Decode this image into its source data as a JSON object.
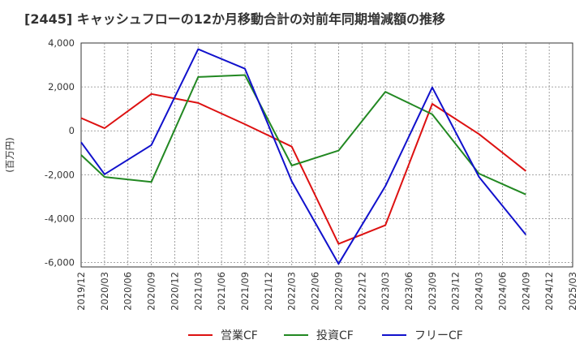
{
  "chart_data": {
    "type": "line",
    "title": "[2445]  キャッシュフローの12か月移動合計の対前年同期増減額の推移",
    "ylabel": "(百万円)",
    "xlabel": "",
    "ylim": [
      -6200,
      4000
    ],
    "yticks": [
      4000,
      2000,
      0,
      -2000,
      -4000,
      -6000
    ],
    "ytick_labels": [
      "4,000",
      "2,000",
      "0",
      "-2,000",
      "-4,000",
      "-6,000"
    ],
    "categories": [
      "2019/12",
      "2020/03",
      "2020/06",
      "2020/09",
      "2020/12",
      "2021/03",
      "2021/06",
      "2021/09",
      "2021/12",
      "2022/03",
      "2022/06",
      "2022/09",
      "2022/12",
      "2023/03",
      "2023/06",
      "2023/09",
      "2023/12",
      "2024/03",
      "2024/06",
      "2024/09",
      "2024/12",
      "2025/03"
    ],
    "grid": true,
    "legend_position": "bottom",
    "series": [
      {
        "name": "営業CF",
        "color": "#dd1111",
        "values": [
          580,
          120,
          null,
          1680,
          null,
          1270,
          null,
          300,
          null,
          -720,
          null,
          -5150,
          null,
          -4300,
          null,
          1230,
          null,
          -150,
          null,
          -1830,
          null,
          null
        ]
      },
      {
        "name": "投資CF",
        "color": "#228822",
        "values": [
          -1100,
          -2100,
          null,
          -2330,
          null,
          2450,
          null,
          2540,
          null,
          -1580,
          null,
          -900,
          null,
          1780,
          null,
          750,
          null,
          -1950,
          null,
          -2900,
          null,
          null
        ]
      },
      {
        "name": "フリーCF",
        "color": "#1111cc",
        "values": [
          -520,
          -1980,
          null,
          -650,
          null,
          3720,
          null,
          2830,
          null,
          -2300,
          null,
          -6060,
          null,
          -2520,
          null,
          1980,
          null,
          -2100,
          null,
          -4730,
          null,
          null
        ]
      }
    ]
  }
}
